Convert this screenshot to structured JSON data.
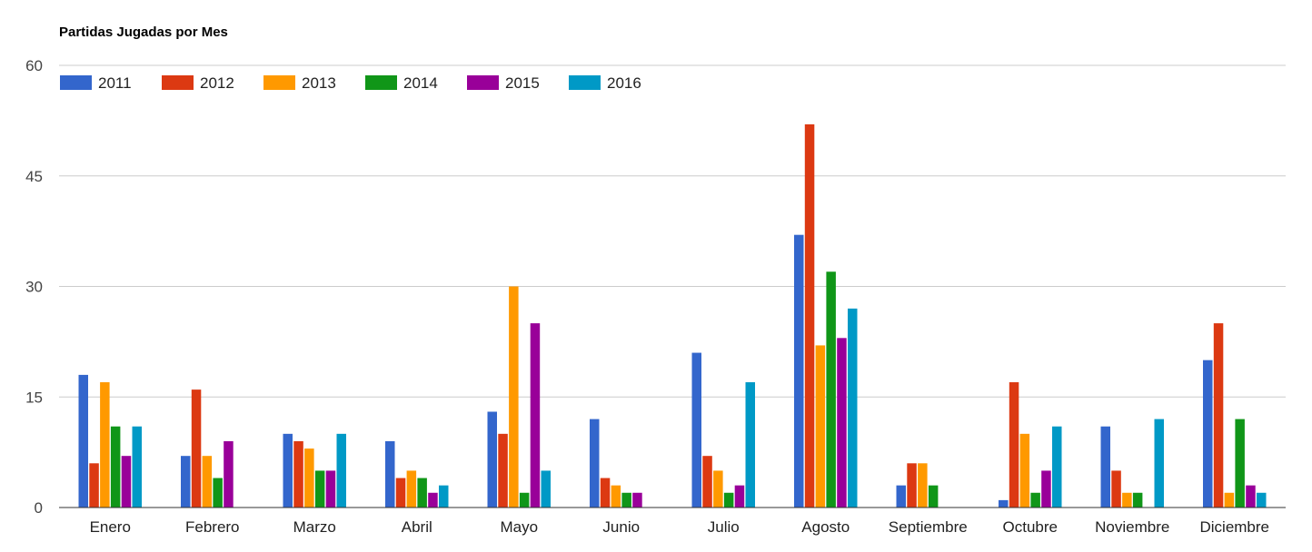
{
  "chart_data": {
    "type": "bar",
    "title": "Partidas Jugadas por Mes",
    "xlabel": "",
    "ylabel": "",
    "ylim": [
      0,
      60
    ],
    "yticks": [
      0,
      15,
      30,
      45,
      60
    ],
    "grid": true,
    "legend_position": "top-left",
    "categories": [
      "Enero",
      "Febrero",
      "Marzo",
      "Abril",
      "Mayo",
      "Junio",
      "Julio",
      "Agosto",
      "Septiembre",
      "Octubre",
      "Noviembre",
      "Diciembre"
    ],
    "series": [
      {
        "name": "2011",
        "color": "#3366cc",
        "values": [
          18,
          7,
          10,
          9,
          13,
          12,
          21,
          37,
          3,
          1,
          11,
          20
        ]
      },
      {
        "name": "2012",
        "color": "#dc3912",
        "values": [
          6,
          16,
          9,
          4,
          10,
          4,
          7,
          52,
          6,
          17,
          5,
          25
        ]
      },
      {
        "name": "2013",
        "color": "#ff9900",
        "values": [
          17,
          7,
          8,
          5,
          30,
          3,
          5,
          22,
          6,
          10,
          2,
          2
        ]
      },
      {
        "name": "2014",
        "color": "#109618",
        "values": [
          11,
          4,
          5,
          4,
          2,
          2,
          2,
          32,
          3,
          2,
          2,
          12
        ]
      },
      {
        "name": "2015",
        "color": "#990099",
        "values": [
          7,
          9,
          5,
          2,
          25,
          2,
          3,
          23,
          0,
          5,
          0,
          3
        ]
      },
      {
        "name": "2016",
        "color": "#0099c6",
        "values": [
          11,
          0,
          10,
          3,
          5,
          0,
          17,
          27,
          0,
          11,
          12,
          2
        ]
      }
    ]
  }
}
